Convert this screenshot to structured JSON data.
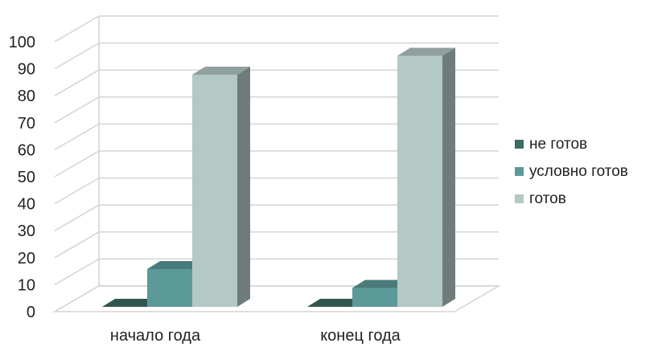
{
  "chart_data": {
    "type": "bar",
    "categories": [
      "начало года",
      "конец года"
    ],
    "series": [
      {
        "name": "не готов",
        "values": [
          0,
          0
        ],
        "color": "#3e6b63"
      },
      {
        "name": "условно готов",
        "values": [
          14,
          7
        ],
        "color": "#5b9a98"
      },
      {
        "name": "готов",
        "values": [
          86,
          93
        ],
        "color": "#b4c8c6"
      }
    ],
    "y_ticks": [
      0,
      10,
      20,
      30,
      40,
      50,
      60,
      70,
      80,
      90,
      100
    ],
    "ylim": [
      0,
      100
    ],
    "grid": true,
    "legend_position": "right",
    "three_d": true
  }
}
